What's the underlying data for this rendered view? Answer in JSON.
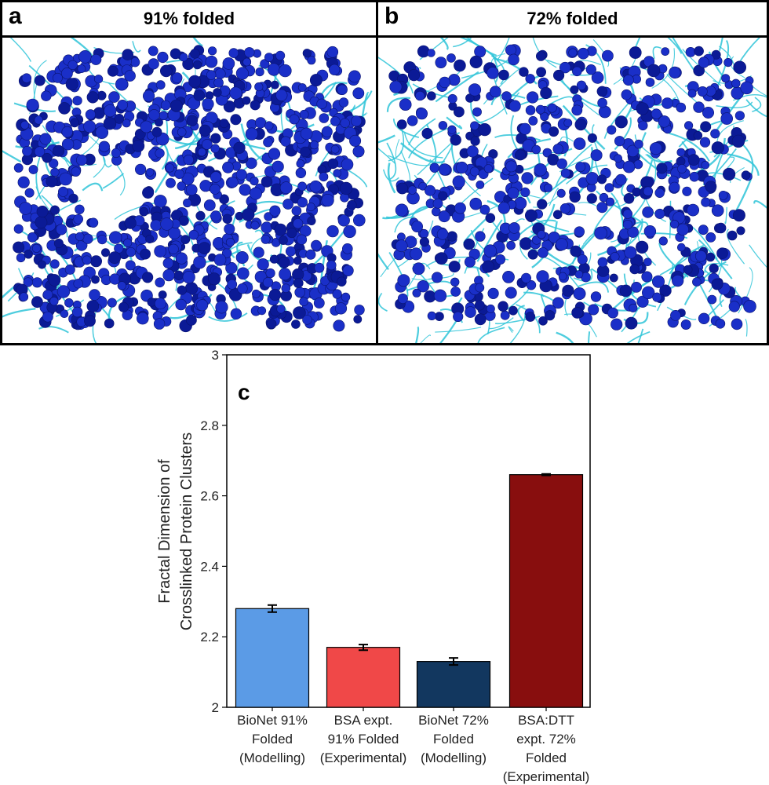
{
  "panels": [
    {
      "letter": "a",
      "title": "91% folded"
    },
    {
      "letter": "b",
      "title": "72% folded"
    }
  ],
  "colors": {
    "bead": "#1a2fc8",
    "bead_dark": "#0b1a96",
    "fiber": "#2fc4d8",
    "bar_colors": [
      "#5b9be6",
      "#f04848",
      "#12375f",
      "#880e0e"
    ]
  },
  "chart_data": {
    "type": "bar",
    "panel_letter": "c",
    "categories": [
      [
        "BioNet 91%",
        "Folded",
        "(Modelling)"
      ],
      [
        "BSA expt.",
        "91% Folded",
        "(Experimental)"
      ],
      [
        "BioNet 72%",
        "Folded",
        "(Modelling)"
      ],
      [
        "BSA:DTT",
        "expt. 72%",
        "Folded",
        "(Experimental)"
      ]
    ],
    "values": [
      2.28,
      2.17,
      2.13,
      2.66
    ],
    "errors": [
      0.01,
      0.008,
      0.01,
      0.002
    ],
    "ylabel_lines": [
      "Fractal Dimension of",
      "Crosslinked Protein Clusters"
    ],
    "ylim": [
      2,
      3
    ],
    "yticks": [
      "2",
      "2.2",
      "2.4",
      "2.6",
      "2.8",
      "3"
    ],
    "ytick_values": [
      2,
      2.2,
      2.4,
      2.6,
      2.8,
      3
    ]
  }
}
